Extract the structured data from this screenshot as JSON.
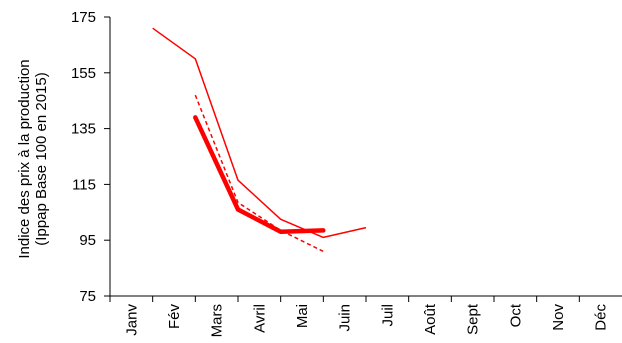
{
  "chart_data": {
    "type": "line",
    "ylabel_lines": [
      "Indice  des prix à la production",
      "(Ippap Base 100 en 2015)"
    ],
    "xlabel": "",
    "categories": [
      "Janv",
      "Fév",
      "Mars",
      "Avril",
      "Mai",
      "Juin",
      "Juil",
      "Août",
      "Sept",
      "Oct",
      "Nov",
      "Déc"
    ],
    "yticks": [
      75,
      95,
      115,
      135,
      155,
      175
    ],
    "ylim": [
      75,
      175
    ],
    "grid": false,
    "legend": "none",
    "series": [
      {
        "style": "thin-solid",
        "color": "#ff0000",
        "points": [
          {
            "month": "Fév",
            "value": 171
          },
          {
            "month": "Mars",
            "value": 160
          },
          {
            "month": "Avril",
            "value": 116.5
          },
          {
            "month": "Mai",
            "value": 102.5
          },
          {
            "month": "Juin",
            "value": 96
          },
          {
            "month": "Juil",
            "value": 99.5
          }
        ]
      },
      {
        "style": "dashed",
        "color": "#ff0000",
        "points": [
          {
            "month": "Mars",
            "value": 147
          },
          {
            "month": "Avril",
            "value": 108.5
          },
          {
            "month": "Mai",
            "value": 98.5
          },
          {
            "month": "Juin",
            "value": 91
          }
        ]
      },
      {
        "style": "thick-solid",
        "color": "#ff0000",
        "points": [
          {
            "month": "Mars",
            "value": 139
          },
          {
            "month": "Avril",
            "value": 106
          },
          {
            "month": "Mai",
            "value": 98
          },
          {
            "month": "Juin",
            "value": 98.5
          }
        ]
      }
    ]
  }
}
